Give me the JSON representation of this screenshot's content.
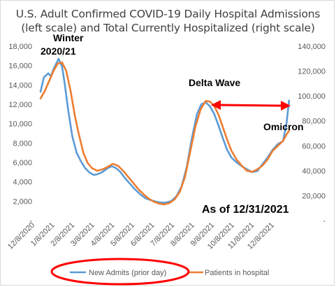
{
  "chart_data": {
    "type": "line",
    "title_lines": [
      "U.S. Adult Confirmed COVID-19 Daily Hospital Admissions",
      "(left scale) and Total Currently Hospitalized (right scale)"
    ],
    "x_tick_labels": [
      "12/8/2020",
      "1/8/2021",
      "2/8/2021",
      "3/8/2021",
      "4/8/2021",
      "5/8/2021",
      "6/8/2021",
      "7/8/2021",
      "8/8/2021",
      "9/8/2021",
      "10/8/2021",
      "11/8/2021",
      "12/8/2021"
    ],
    "y_left": {
      "ticks": [
        "-",
        "2,000",
        "4,000",
        "6,000",
        "8,000",
        "10,000",
        "12,000",
        "14,000",
        "16,000",
        "18,000"
      ],
      "ylim": [
        0,
        18000
      ]
    },
    "y_right": {
      "ticks": [
        "-",
        "20,000",
        "40,000",
        "60,000",
        "80,000",
        "100,000",
        "120,000",
        "140,000"
      ],
      "ylim": [
        0,
        140000
      ]
    },
    "series": [
      {
        "name": "New Admits (prior day)",
        "color": "#5b9bd5",
        "axis": "left",
        "points": [
          [
            0,
            13300
          ],
          [
            4,
            14800
          ],
          [
            9,
            15200
          ],
          [
            12,
            14900
          ],
          [
            16,
            15800
          ],
          [
            21,
            16700
          ],
          [
            25,
            15900
          ],
          [
            28,
            14200
          ],
          [
            32,
            11500
          ],
          [
            37,
            8700
          ],
          [
            42,
            7000
          ],
          [
            47,
            6100
          ],
          [
            52,
            5400
          ],
          [
            57,
            4950
          ],
          [
            62,
            4700
          ],
          [
            67,
            4800
          ],
          [
            72,
            5000
          ],
          [
            78,
            5400
          ],
          [
            83,
            5600
          ],
          [
            88,
            5400
          ],
          [
            93,
            5000
          ],
          [
            98,
            4400
          ],
          [
            104,
            3800
          ],
          [
            110,
            3200
          ],
          [
            116,
            2700
          ],
          [
            122,
            2300
          ],
          [
            128,
            2100
          ],
          [
            134,
            1950
          ],
          [
            140,
            1850
          ],
          [
            146,
            1850
          ],
          [
            152,
            2000
          ],
          [
            158,
            2500
          ],
          [
            164,
            3500
          ],
          [
            170,
            5500
          ],
          [
            176,
            8500
          ],
          [
            182,
            11000
          ],
          [
            187,
            12000
          ],
          [
            192,
            12200
          ],
          [
            197,
            11800
          ],
          [
            202,
            11000
          ],
          [
            207,
            9800
          ],
          [
            212,
            8500
          ],
          [
            217,
            7300
          ],
          [
            222,
            6500
          ],
          [
            228,
            6000
          ],
          [
            234,
            5600
          ],
          [
            240,
            5300
          ],
          [
            246,
            5000
          ],
          [
            252,
            5100
          ],
          [
            258,
            5800
          ],
          [
            264,
            6500
          ],
          [
            270,
            7300
          ],
          [
            276,
            7900
          ],
          [
            282,
            8200
          ],
          [
            286,
            10000
          ],
          [
            289,
            12400
          ]
        ]
      },
      {
        "name": "Patients in hospital",
        "color": "#ed7d31",
        "axis": "right",
        "points": [
          [
            0,
            98000
          ],
          [
            5,
            104000
          ],
          [
            10,
            112000
          ],
          [
            15,
            120000
          ],
          [
            20,
            126000
          ],
          [
            25,
            127000
          ],
          [
            30,
            120000
          ],
          [
            35,
            104000
          ],
          [
            40,
            84000
          ],
          [
            45,
            68000
          ],
          [
            50,
            54000
          ],
          [
            55,
            46000
          ],
          [
            60,
            42000
          ],
          [
            66,
            40000
          ],
          [
            72,
            41000
          ],
          [
            78,
            43000
          ],
          [
            84,
            45500
          ],
          [
            90,
            44000
          ],
          [
            96,
            40000
          ],
          [
            102,
            35000
          ],
          [
            108,
            30000
          ],
          [
            114,
            25000
          ],
          [
            120,
            21000
          ],
          [
            126,
            17500
          ],
          [
            132,
            15000
          ],
          [
            138,
            13500
          ],
          [
            144,
            13000
          ],
          [
            150,
            14000
          ],
          [
            156,
            17000
          ],
          [
            162,
            23000
          ],
          [
            168,
            35000
          ],
          [
            174,
            55000
          ],
          [
            180,
            75000
          ],
          [
            186,
            89000
          ],
          [
            192,
            96000
          ],
          [
            197,
            95500
          ],
          [
            202,
            92000
          ],
          [
            207,
            85000
          ],
          [
            212,
            75000
          ],
          [
            217,
            65000
          ],
          [
            222,
            56000
          ],
          [
            228,
            49000
          ],
          [
            234,
            44000
          ],
          [
            240,
            40000
          ],
          [
            246,
            39000
          ],
          [
            252,
            41000
          ],
          [
            258,
            44000
          ],
          [
            264,
            49000
          ],
          [
            270,
            56000
          ],
          [
            276,
            60000
          ],
          [
            282,
            64000
          ],
          [
            286,
            69000
          ],
          [
            289,
            72000
          ]
        ]
      }
    ],
    "annotations": [
      {
        "text": "Winter 2020/21"
      },
      {
        "text": "Delta Wave"
      },
      {
        "text": "Omicron"
      },
      {
        "text": "As of 12/31/2021"
      }
    ],
    "legend": {
      "position": "bottom",
      "labels": [
        "New Admits (prior day)",
        "Patients in hospital"
      ]
    },
    "highlight_color": "#ff0000"
  }
}
